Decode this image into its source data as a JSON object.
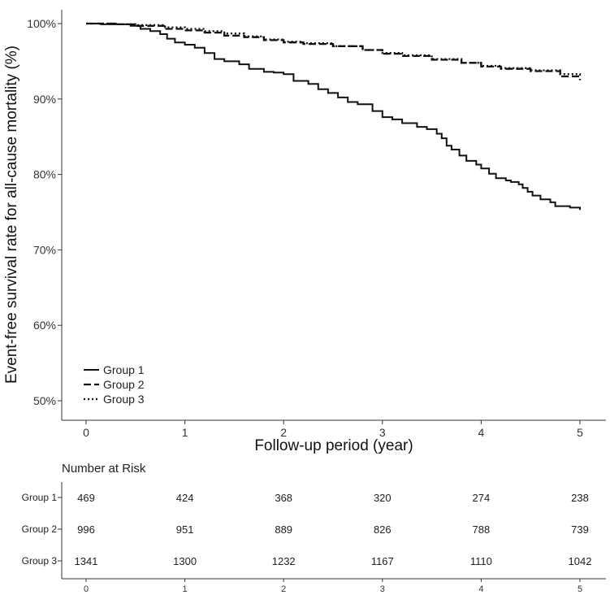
{
  "chart_data": {
    "type": "line",
    "subtype": "kaplan-meier step curves",
    "ylabel": "Event-free survival rate for all-cause mortality (%)",
    "xlabel": "Follow-up period (year)",
    "xlim": [
      0,
      5
    ],
    "ylim": [
      50,
      100
    ],
    "x_ticks": [
      0,
      1,
      2,
      3,
      4,
      5
    ],
    "y_ticks": [
      50,
      60,
      70,
      80,
      90,
      100
    ],
    "y_tick_labels": [
      "50%",
      "60%",
      "70%",
      "80%",
      "90%",
      "100%"
    ],
    "grid": false,
    "legend_position": "bottom-left",
    "series": [
      {
        "name": "Group 1",
        "style": "solid",
        "x": [
          0,
          0.15,
          0.45,
          0.55,
          0.65,
          0.75,
          0.82,
          0.9,
          1.0,
          1.1,
          1.2,
          1.3,
          1.4,
          1.55,
          1.65,
          1.8,
          1.9,
          2.0,
          2.1,
          2.25,
          2.35,
          2.45,
          2.55,
          2.65,
          2.75,
          2.9,
          3.0,
          3.1,
          3.2,
          3.35,
          3.45,
          3.55,
          3.6,
          3.65,
          3.7,
          3.78,
          3.85,
          3.95,
          4.0,
          4.08,
          4.15,
          4.25,
          4.3,
          4.38,
          4.42,
          4.47,
          4.52,
          4.6,
          4.7,
          4.75,
          4.9,
          5.0
        ],
        "y": [
          100,
          99.9,
          99.7,
          99.3,
          99.0,
          98.6,
          98.0,
          97.5,
          97.2,
          96.8,
          96.1,
          95.3,
          95.0,
          94.6,
          94.0,
          93.6,
          93.5,
          93.3,
          92.4,
          92.0,
          91.3,
          90.8,
          90.2,
          89.6,
          89.3,
          88.4,
          87.6,
          87.3,
          86.8,
          86.3,
          86.0,
          85.4,
          84.8,
          83.8,
          83.3,
          82.5,
          81.8,
          81.3,
          80.8,
          80.1,
          79.5,
          79.2,
          79.0,
          78.7,
          78.2,
          77.7,
          77.2,
          76.7,
          76.3,
          75.8,
          75.6,
          75.3
        ]
      },
      {
        "name": "Group 2",
        "style": "dashed",
        "x": [
          0,
          0.3,
          0.5,
          0.8,
          1.0,
          1.2,
          1.4,
          1.6,
          1.8,
          2.0,
          2.2,
          2.5,
          2.8,
          3.0,
          3.2,
          3.5,
          3.8,
          4.0,
          4.2,
          4.5,
          4.8,
          5.0
        ],
        "y": [
          100,
          99.9,
          99.7,
          99.3,
          99.1,
          98.8,
          98.4,
          98.2,
          97.8,
          97.5,
          97.3,
          97.0,
          96.5,
          96.0,
          95.7,
          95.2,
          94.8,
          94.3,
          94.0,
          93.7,
          93.0,
          92.5
        ]
      },
      {
        "name": "Group 3",
        "style": "dotted",
        "x": [
          0,
          0.3,
          0.5,
          0.8,
          1.0,
          1.2,
          1.4,
          1.6,
          1.8,
          2.0,
          2.2,
          2.5,
          2.8,
          3.0,
          3.2,
          3.5,
          3.8,
          4.0,
          4.2,
          4.5,
          4.8,
          5.0
        ],
        "y": [
          100,
          99.9,
          99.8,
          99.5,
          99.3,
          99.0,
          98.7,
          98.3,
          97.9,
          97.6,
          97.4,
          97.0,
          96.5,
          96.1,
          95.8,
          95.3,
          94.8,
          94.4,
          94.1,
          93.8,
          93.3,
          93.0
        ]
      }
    ],
    "risk_table": {
      "title": "Number at Risk",
      "time_points": [
        0,
        1,
        2,
        3,
        4,
        5
      ],
      "rows": [
        {
          "group": "Group 1",
          "values": [
            469,
            424,
            368,
            320,
            274,
            238
          ]
        },
        {
          "group": "Group 2",
          "values": [
            996,
            951,
            889,
            826,
            788,
            739
          ]
        },
        {
          "group": "Group 3",
          "values": [
            1341,
            1300,
            1232,
            1167,
            1110,
            1042
          ]
        }
      ]
    }
  }
}
